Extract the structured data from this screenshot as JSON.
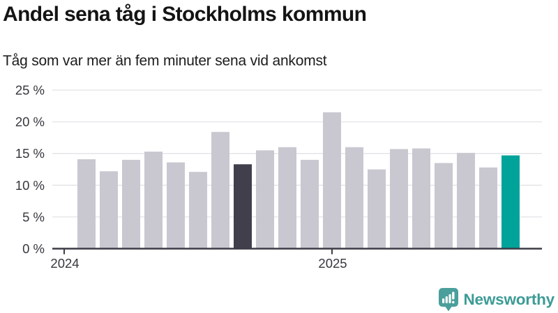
{
  "header": {
    "title": "Andel sena tåg i Stockholms kommun",
    "subtitle": "Tåg som var mer än fem minuter sena vid ankomst"
  },
  "chart_data": {
    "type": "bar",
    "title": "Andel sena tåg i Stockholms kommun",
    "subtitle": "Tåg som var mer än fem minuter sena vid ankomst",
    "unit": "percent (share of trains more than five minutes late at arrival)",
    "x": [
      "2024-01",
      "2024-02",
      "2024-03",
      "2024-04",
      "2024-05",
      "2024-06",
      "2024-07",
      "2024-08",
      "2024-09",
      "2024-10",
      "2024-11",
      "2024-12",
      "2025-01",
      "2025-02",
      "2025-03",
      "2025-04",
      "2025-05",
      "2025-06",
      "2025-07",
      "2025-08",
      "2025-09"
    ],
    "values": [
      null,
      14.1,
      12.2,
      14.0,
      15.3,
      13.6,
      12.1,
      18.4,
      13.3,
      15.5,
      16.0,
      14.0,
      21.5,
      16.0,
      12.5,
      15.7,
      15.8,
      13.5,
      15.1,
      12.8,
      14.7
    ],
    "highlight_dark_x": "2024-09",
    "highlight_teal_x": "2025-09",
    "ylim": [
      0,
      25
    ],
    "yticks": [
      0,
      5,
      10,
      15,
      20,
      25
    ],
    "ytick_labels": [
      "0 %",
      "5 %",
      "10 %",
      "15 %",
      "20 %",
      "25 %"
    ],
    "xticks": [
      {
        "index": 0,
        "label": "2024"
      },
      {
        "index": 12,
        "label": "2025"
      }
    ],
    "grid": true,
    "legend_position": "none",
    "colors": {
      "bar_default": "#c9c8d1",
      "bar_highlight_dark": "#413f4c",
      "bar_highlight_teal": "#00a39a",
      "axis": "#3b3b45",
      "gridline": "#e3e2e7",
      "tick_text": "#36363e"
    }
  },
  "branding": {
    "name": "Newsworthy",
    "icon": "newsworthy-chart-bubble-icon",
    "color": "#3d9b96",
    "icon_color": "#4a9f9b"
  }
}
